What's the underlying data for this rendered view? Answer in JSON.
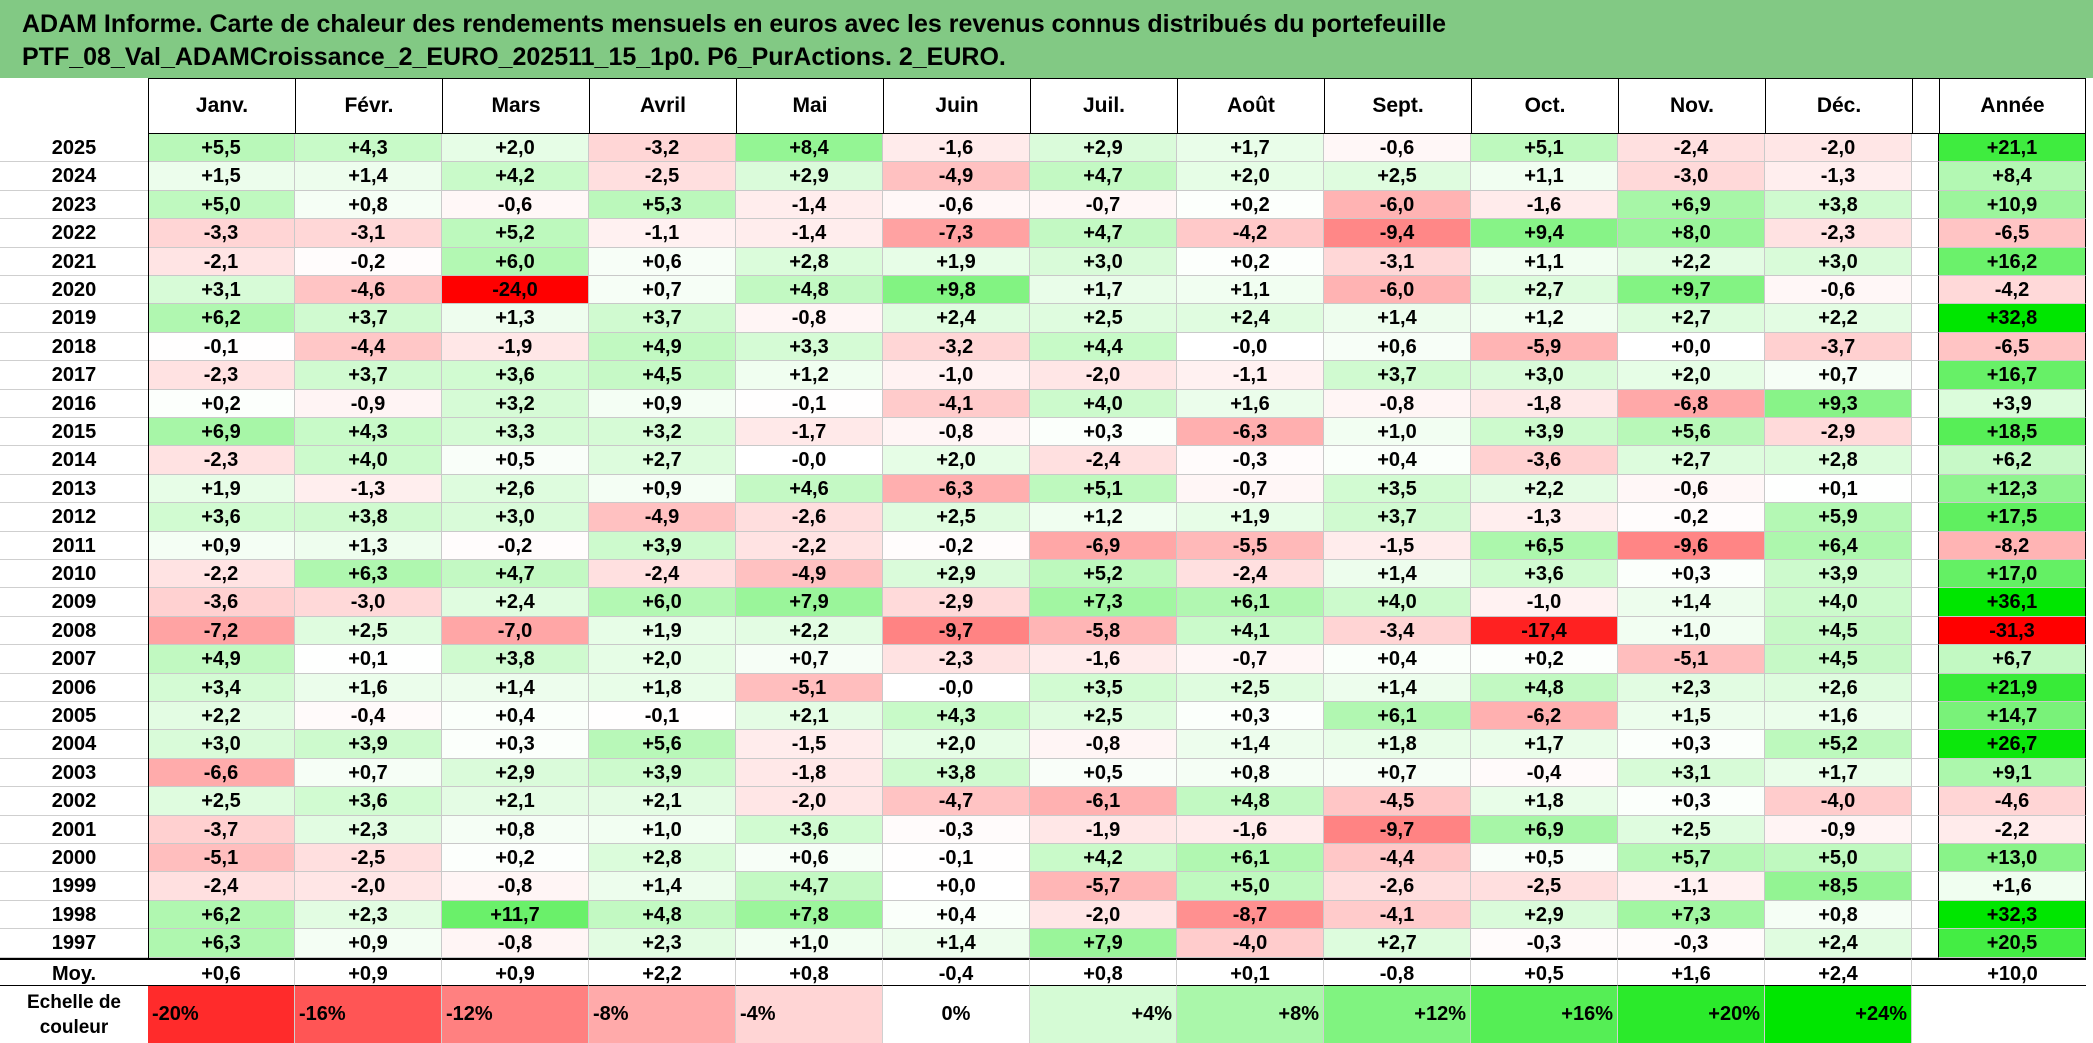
{
  "title_line1": "ADAM Informe. Carte de chaleur des rendements mensuels en euros avec les revenus connus distribués du portefeuille",
  "title_line2": "PTF_08_Val_ADAMCroissance_2_EURO_202511_15_1p0. P6_PurActions. 2_EURO.",
  "chart_data": {
    "type": "heatmap",
    "columns": [
      "Janv.",
      "Févr.",
      "Mars",
      "Avril",
      "Mai",
      "Juin",
      "Juil.",
      "Août",
      "Sept.",
      "Oct.",
      "Nov.",
      "Déc."
    ],
    "year_column": "Année",
    "rows": [
      {
        "year": "2025",
        "m": [
          "+5,5",
          "+4,3",
          "+2,0",
          "-3,2",
          "+8,4",
          "-1,6",
          "+2,9",
          "+1,7",
          "-0,6",
          "+5,1",
          "-2,4",
          "-2,0"
        ],
        "y": "+21,1"
      },
      {
        "year": "2024",
        "m": [
          "+1,5",
          "+1,4",
          "+4,2",
          "-2,5",
          "+2,9",
          "-4,9",
          "+4,7",
          "+2,0",
          "+2,5",
          "+1,1",
          "-3,0",
          "-1,3"
        ],
        "y": "+8,4"
      },
      {
        "year": "2023",
        "m": [
          "+5,0",
          "+0,8",
          "-0,6",
          "+5,3",
          "-1,4",
          "-0,6",
          "-0,7",
          "+0,2",
          "-6,0",
          "-1,6",
          "+6,9",
          "+3,8"
        ],
        "y": "+10,9"
      },
      {
        "year": "2022",
        "m": [
          "-3,3",
          "-3,1",
          "+5,2",
          "-1,1",
          "-1,4",
          "-7,3",
          "+4,7",
          "-4,2",
          "-9,4",
          "+9,4",
          "+8,0",
          "-2,3"
        ],
        "y": "-6,5"
      },
      {
        "year": "2021",
        "m": [
          "-2,1",
          "-0,2",
          "+6,0",
          "+0,6",
          "+2,8",
          "+1,9",
          "+3,0",
          "+0,2",
          "-3,1",
          "+1,1",
          "+2,2",
          "+3,0"
        ],
        "y": "+16,2"
      },
      {
        "year": "2020",
        "m": [
          "+3,1",
          "-4,6",
          "-24,0",
          "+0,7",
          "+4,8",
          "+9,8",
          "+1,7",
          "+1,1",
          "-6,0",
          "+2,7",
          "+9,7",
          "-0,6"
        ],
        "y": "-4,2"
      },
      {
        "year": "2019",
        "m": [
          "+6,2",
          "+3,7",
          "+1,3",
          "+3,7",
          "-0,8",
          "+2,4",
          "+2,5",
          "+2,4",
          "+1,4",
          "+1,2",
          "+2,7",
          "+2,2"
        ],
        "y": "+32,8"
      },
      {
        "year": "2018",
        "m": [
          "-0,1",
          "-4,4",
          "-1,9",
          "+4,9",
          "+3,3",
          "-3,2",
          "+4,4",
          "-0,0",
          "+0,6",
          "-5,9",
          "+0,0",
          "-3,7"
        ],
        "y": "-6,5"
      },
      {
        "year": "2017",
        "m": [
          "-2,3",
          "+3,7",
          "+3,6",
          "+4,5",
          "+1,2",
          "-1,0",
          "-2,0",
          "-1,1",
          "+3,7",
          "+3,0",
          "+2,0",
          "+0,7"
        ],
        "y": "+16,7"
      },
      {
        "year": "2016",
        "m": [
          "+0,2",
          "-0,9",
          "+3,2",
          "+0,9",
          "-0,1",
          "-4,1",
          "+4,0",
          "+1,6",
          "-0,8",
          "-1,8",
          "-6,8",
          "+9,3"
        ],
        "y": "+3,9"
      },
      {
        "year": "2015",
        "m": [
          "+6,9",
          "+4,3",
          "+3,3",
          "+3,2",
          "-1,7",
          "-0,8",
          "+0,3",
          "-6,3",
          "+1,0",
          "+3,9",
          "+5,6",
          "-2,9"
        ],
        "y": "+18,5"
      },
      {
        "year": "2014",
        "m": [
          "-2,3",
          "+4,0",
          "+0,5",
          "+2,7",
          "-0,0",
          "+2,0",
          "-2,4",
          "-0,3",
          "+0,4",
          "-3,6",
          "+2,7",
          "+2,8"
        ],
        "y": "+6,2"
      },
      {
        "year": "2013",
        "m": [
          "+1,9",
          "-1,3",
          "+2,6",
          "+0,9",
          "+4,6",
          "-6,3",
          "+5,1",
          "-0,7",
          "+3,5",
          "+2,2",
          "-0,6",
          "+0,1"
        ],
        "y": "+12,3"
      },
      {
        "year": "2012",
        "m": [
          "+3,6",
          "+3,8",
          "+3,0",
          "-4,9",
          "-2,6",
          "+2,5",
          "+1,2",
          "+1,9",
          "+3,7",
          "-1,3",
          "-0,2",
          "+5,9"
        ],
        "y": "+17,5"
      },
      {
        "year": "2011",
        "m": [
          "+0,9",
          "+1,3",
          "-0,2",
          "+3,9",
          "-2,2",
          "-0,2",
          "-6,9",
          "-5,5",
          "-1,5",
          "+6,5",
          "-9,6",
          "+6,4"
        ],
        "y": "-8,2"
      },
      {
        "year": "2010",
        "m": [
          "-2,2",
          "+6,3",
          "+4,7",
          "-2,4",
          "-4,9",
          "+2,9",
          "+5,2",
          "-2,4",
          "+1,4",
          "+3,6",
          "+0,3",
          "+3,9"
        ],
        "y": "+17,0"
      },
      {
        "year": "2009",
        "m": [
          "-3,6",
          "-3,0",
          "+2,4",
          "+6,0",
          "+7,9",
          "-2,9",
          "+7,3",
          "+6,1",
          "+4,0",
          "-1,0",
          "+1,4",
          "+4,0"
        ],
        "y": "+36,1"
      },
      {
        "year": "2008",
        "m": [
          "-7,2",
          "+2,5",
          "-7,0",
          "+1,9",
          "+2,2",
          "-9,7",
          "-5,8",
          "+4,1",
          "-3,4",
          "-17,4",
          "+1,0",
          "+4,5"
        ],
        "y": "-31,3"
      },
      {
        "year": "2007",
        "m": [
          "+4,9",
          "+0,1",
          "+3,8",
          "+2,0",
          "+0,7",
          "-2,3",
          "-1,6",
          "-0,7",
          "+0,4",
          "+0,2",
          "-5,1",
          "+4,5"
        ],
        "y": "+6,7"
      },
      {
        "year": "2006",
        "m": [
          "+3,4",
          "+1,6",
          "+1,4",
          "+1,8",
          "-5,1",
          "-0,0",
          "+3,5",
          "+2,5",
          "+1,4",
          "+4,8",
          "+2,3",
          "+2,6"
        ],
        "y": "+21,9"
      },
      {
        "year": "2005",
        "m": [
          "+2,2",
          "-0,4",
          "+0,4",
          "-0,1",
          "+2,1",
          "+4,3",
          "+2,5",
          "+0,3",
          "+6,1",
          "-6,2",
          "+1,5",
          "+1,6"
        ],
        "y": "+14,7"
      },
      {
        "year": "2004",
        "m": [
          "+3,0",
          "+3,9",
          "+0,3",
          "+5,6",
          "-1,5",
          "+2,0",
          "-0,8",
          "+1,4",
          "+1,8",
          "+1,7",
          "+0,3",
          "+5,2"
        ],
        "y": "+26,7"
      },
      {
        "year": "2003",
        "m": [
          "-6,6",
          "+0,7",
          "+2,9",
          "+3,9",
          "-1,8",
          "+3,8",
          "+0,5",
          "+0,8",
          "+0,7",
          "-0,4",
          "+3,1",
          "+1,7"
        ],
        "y": "+9,1"
      },
      {
        "year": "2002",
        "m": [
          "+2,5",
          "+3,6",
          "+2,1",
          "+2,1",
          "-2,0",
          "-4,7",
          "-6,1",
          "+4,8",
          "-4,5",
          "+1,8",
          "+0,3",
          "-4,0"
        ],
        "y": "-4,6"
      },
      {
        "year": "2001",
        "m": [
          "-3,7",
          "+2,3",
          "+0,8",
          "+1,0",
          "+3,6",
          "-0,3",
          "-1,9",
          "-1,6",
          "-9,7",
          "+6,9",
          "+2,5",
          "-0,9"
        ],
        "y": "-2,2"
      },
      {
        "year": "2000",
        "m": [
          "-5,1",
          "-2,5",
          "+0,2",
          "+2,8",
          "+0,6",
          "-0,1",
          "+4,2",
          "+6,1",
          "-4,4",
          "+0,5",
          "+5,7",
          "+5,0"
        ],
        "y": "+13,0"
      },
      {
        "year": "1999",
        "m": [
          "-2,4",
          "-2,0",
          "-0,8",
          "+1,4",
          "+4,7",
          "+0,0",
          "-5,7",
          "+5,0",
          "-2,6",
          "-2,5",
          "-1,1",
          "+8,5"
        ],
        "y": "+1,6"
      },
      {
        "year": "1998",
        "m": [
          "+6,2",
          "+2,3",
          "+11,7",
          "+4,8",
          "+7,8",
          "+0,4",
          "-2,0",
          "-8,7",
          "-4,1",
          "+2,9",
          "+7,3",
          "+0,8"
        ],
        "y": "+32,3"
      },
      {
        "year": "1997",
        "m": [
          "+6,3",
          "+0,9",
          "-0,8",
          "+2,3",
          "+1,0",
          "+1,4",
          "+7,9",
          "-4,0",
          "+2,7",
          "-0,3",
          "-0,3",
          "+2,4"
        ],
        "y": "+20,5"
      }
    ],
    "average": {
      "label": "Moy.",
      "m": [
        "+0,6",
        "+0,9",
        "+0,9",
        "+2,2",
        "+0,8",
        "-0,4",
        "+0,8",
        "+0,1",
        "-0,8",
        "+0,5",
        "+1,6",
        "+2,4"
      ],
      "y": "+10,0"
    },
    "legend": {
      "label_line1": "Echelle de",
      "label_line2": "couleur",
      "stops": [
        "-20%",
        "-16%",
        "-12%",
        "-8%",
        "-4%",
        "0%",
        "+4%",
        "+8%",
        "+12%",
        "+16%",
        "+20%",
        "+24%"
      ],
      "stop_values": [
        -20,
        -16,
        -12,
        -8,
        -4,
        0,
        4,
        8,
        12,
        16,
        20,
        24
      ]
    }
  }
}
